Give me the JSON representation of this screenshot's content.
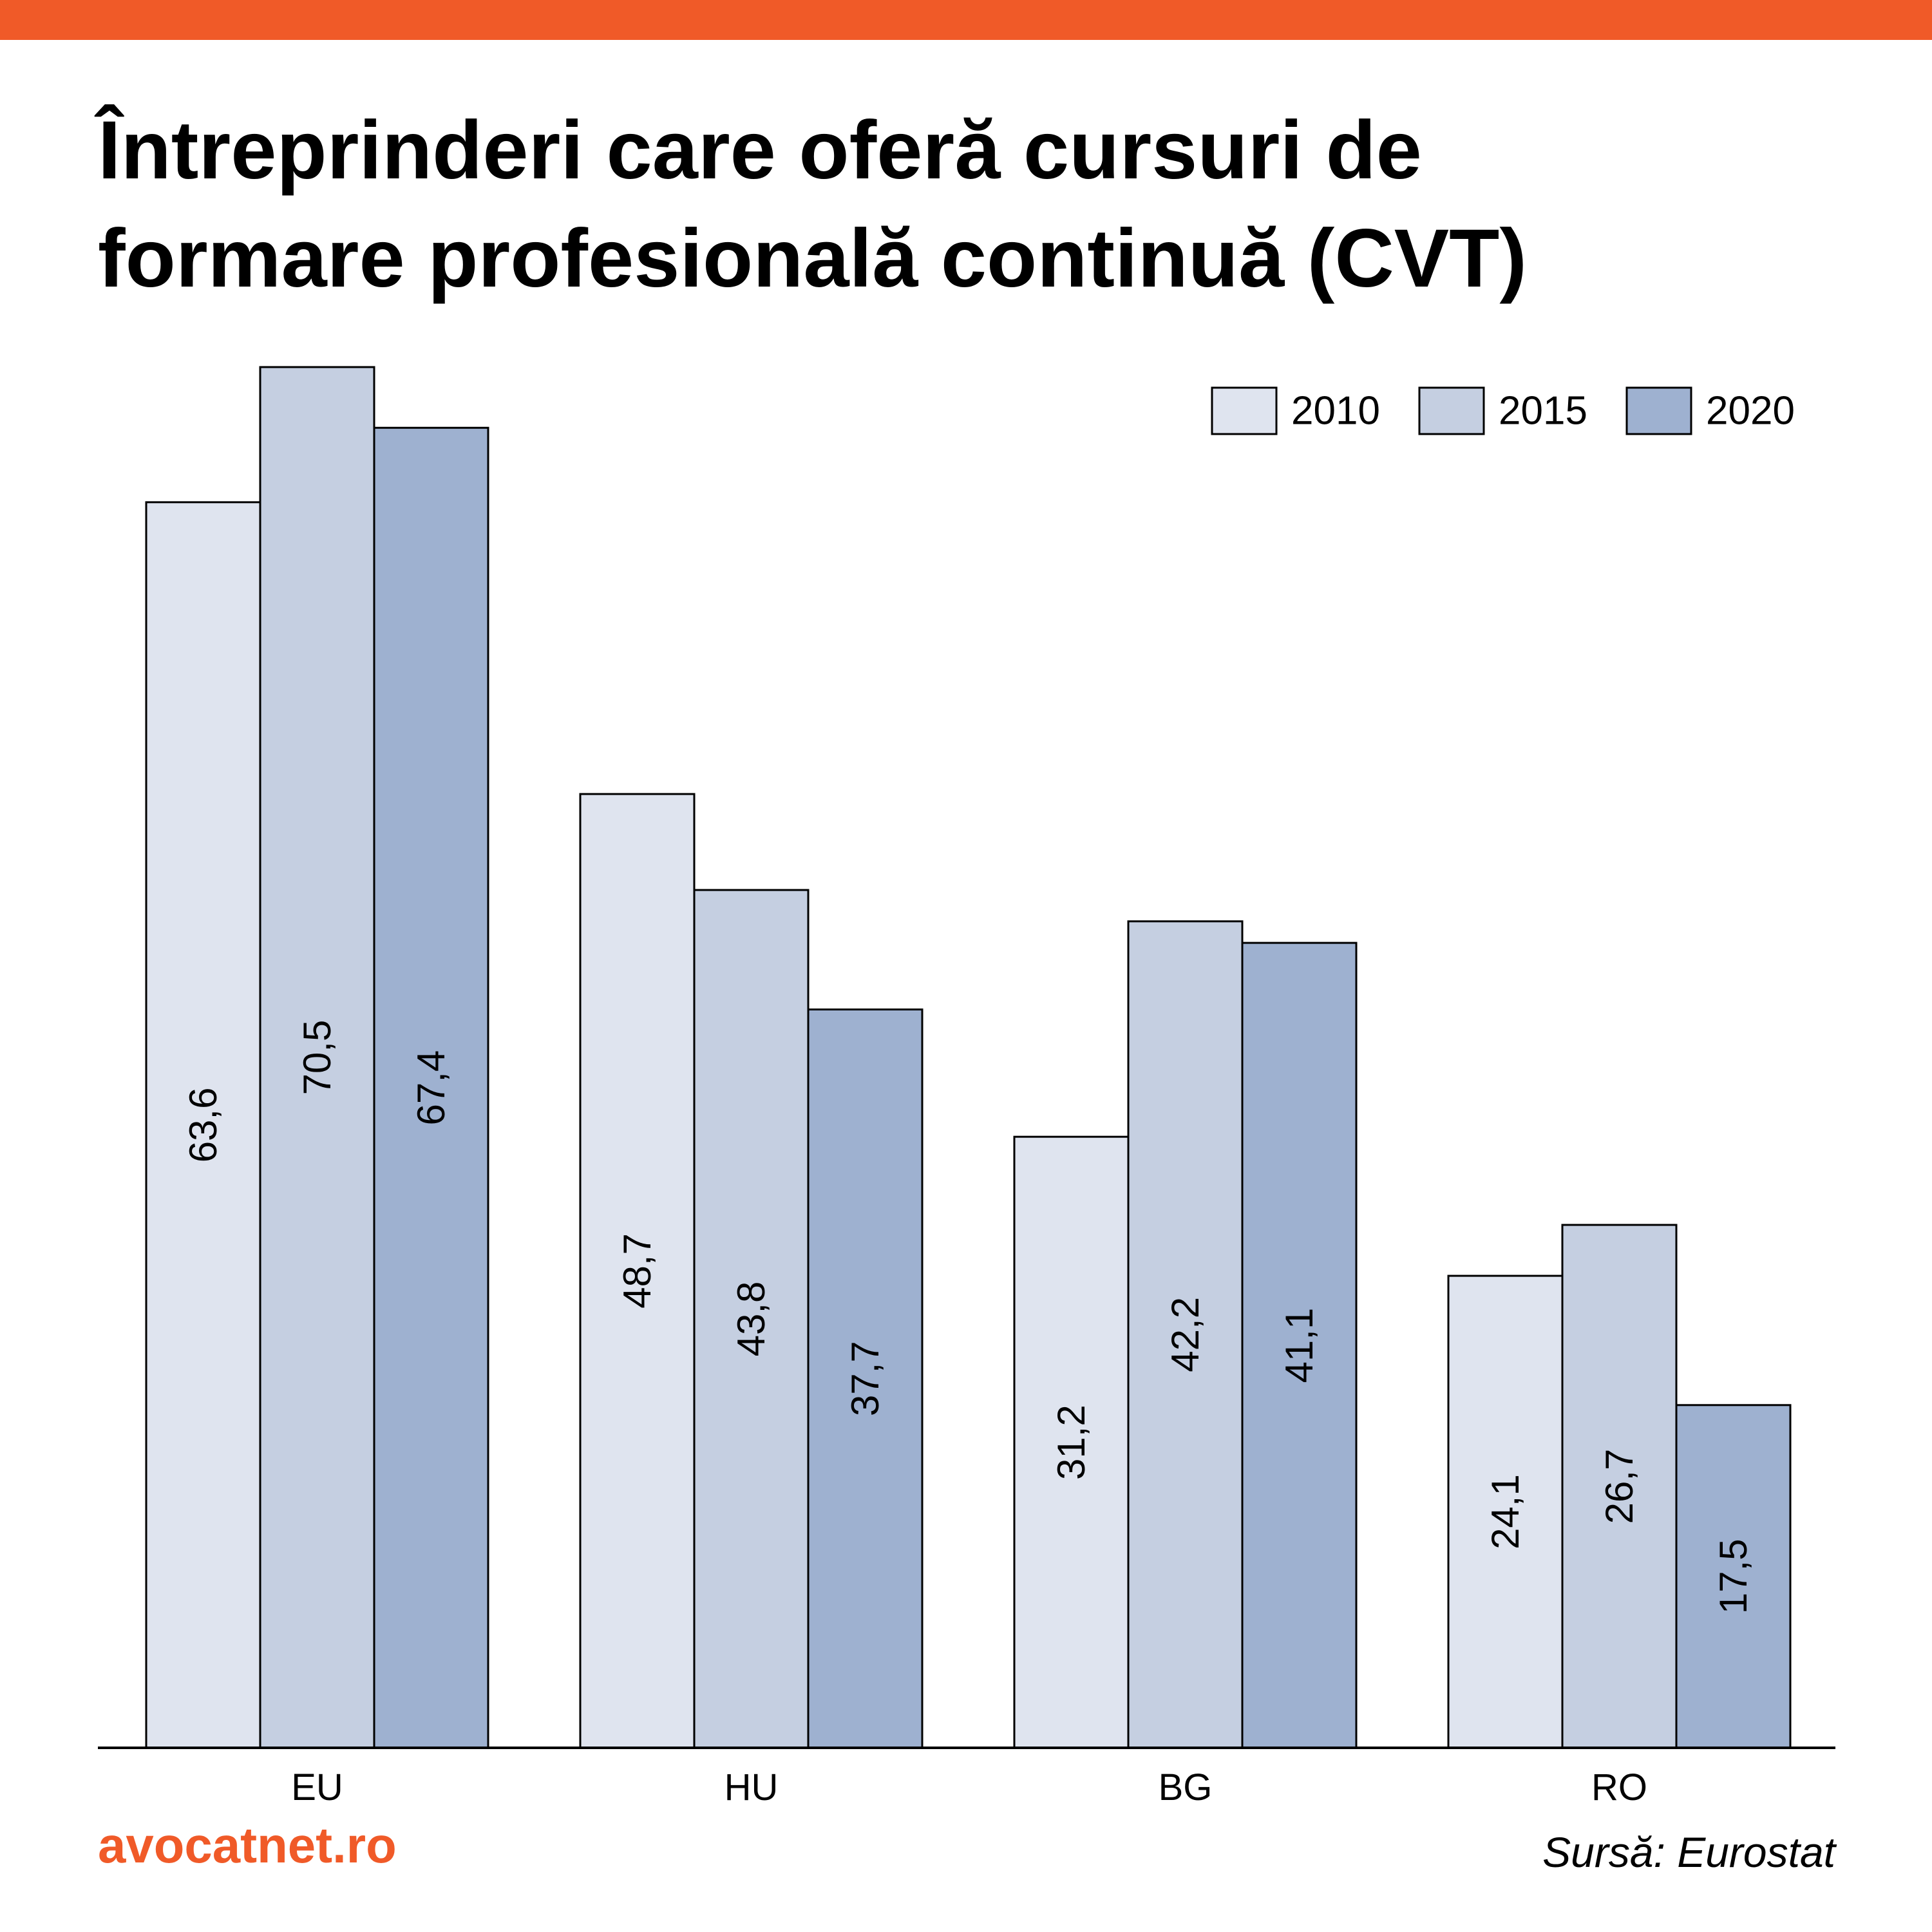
{
  "header": {
    "title_line1": "Întreprinderi care oferă cursuri de",
    "title_line2": "formare profesională continuă (CVT)"
  },
  "footer": {
    "brand": "avocatnet.ro",
    "source": "Sursă: Eurostat"
  },
  "colors": {
    "accent": "#F05A28",
    "series": [
      "#DFE4EF",
      "#C5CFE1",
      "#9EB1D0"
    ],
    "stroke": "#000000"
  },
  "chart_data": {
    "type": "bar",
    "title": "Întreprinderi care oferă cursuri de formare profesională continuă (CVT)",
    "categories": [
      "EU",
      "HU",
      "BG",
      "RO"
    ],
    "series": [
      {
        "name": "2010",
        "values": [
          63.6,
          48.7,
          31.2,
          24.1
        ],
        "labels": [
          "63,6",
          "48,7",
          "31,2",
          "24,1"
        ]
      },
      {
        "name": "2015",
        "values": [
          70.5,
          43.8,
          42.2,
          26.7
        ],
        "labels": [
          "70,5",
          "43,8",
          "42,2",
          "26,7"
        ]
      },
      {
        "name": "2020",
        "values": [
          67.4,
          37.7,
          41.1,
          17.5
        ],
        "labels": [
          "67,4",
          "37,7",
          "41,1",
          "17,5"
        ]
      }
    ],
    "ylim": [
      0,
      70.5
    ],
    "grid": false,
    "legend": "top-right",
    "value_labels": "inside bars, rotated"
  }
}
